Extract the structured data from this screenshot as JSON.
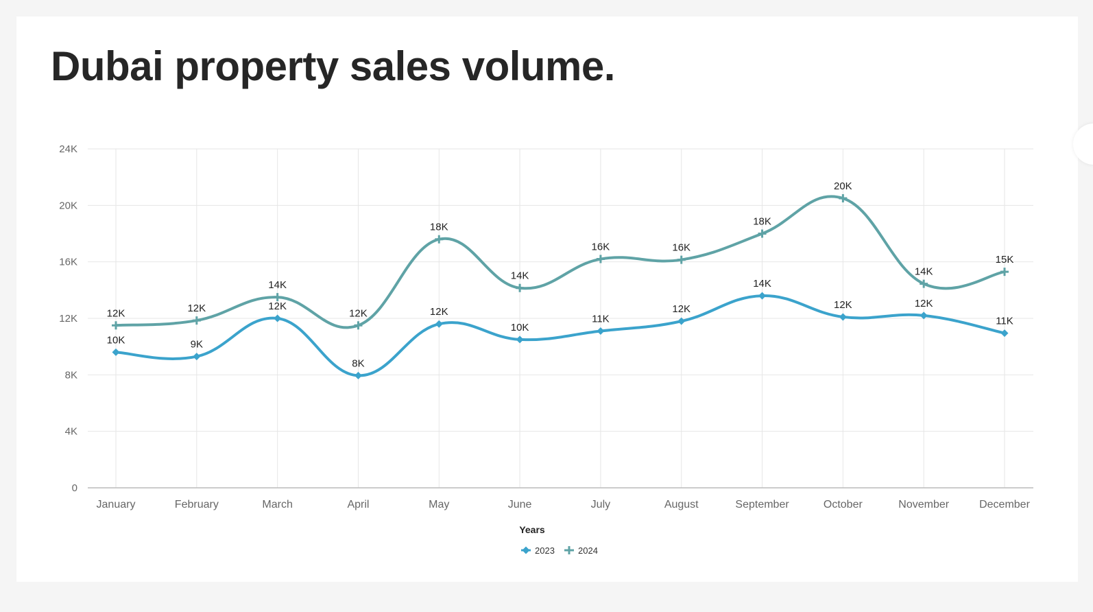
{
  "title": "Dubai property sales volume.",
  "colors": {
    "series_2023": "#3ba3cc",
    "series_2024": "#5fa3a6",
    "grid": "#e6e6e6",
    "axis": "#bbbbbb"
  },
  "chart_data": {
    "type": "line",
    "curve": "smooth",
    "categories": [
      "January",
      "February",
      "March",
      "April",
      "May",
      "June",
      "July",
      "August",
      "September",
      "October",
      "November",
      "December"
    ],
    "xlabel": "Years",
    "ylabel": "",
    "ylim": [
      0,
      24000
    ],
    "yticks": [
      0,
      4000,
      8000,
      12000,
      16000,
      20000,
      24000
    ],
    "ytick_labels": [
      "0",
      "4K",
      "8K",
      "12K",
      "16K",
      "20K",
      "24K"
    ],
    "grid": true,
    "legend_position": "bottom-center",
    "series": [
      {
        "name": "2023",
        "marker": "diamond",
        "values": [
          9600,
          9300,
          12000,
          7950,
          11600,
          10500,
          11100,
          11800,
          13600,
          12100,
          12200,
          10950
        ],
        "labels": [
          "10K",
          "9K",
          "12K",
          "8K",
          "12K",
          "10K",
          "11K",
          "12K",
          "14K",
          "12K",
          "12K",
          "11K"
        ]
      },
      {
        "name": "2024",
        "marker": "plus",
        "values": [
          11500,
          11850,
          13500,
          11500,
          17600,
          14150,
          16200,
          16150,
          18000,
          20500,
          14450,
          15300
        ],
        "labels": [
          "12K",
          "12K",
          "14K",
          "12K",
          "18K",
          "14K",
          "16K",
          "16K",
          "18K",
          "20K",
          "14K",
          "15K"
        ]
      }
    ]
  }
}
